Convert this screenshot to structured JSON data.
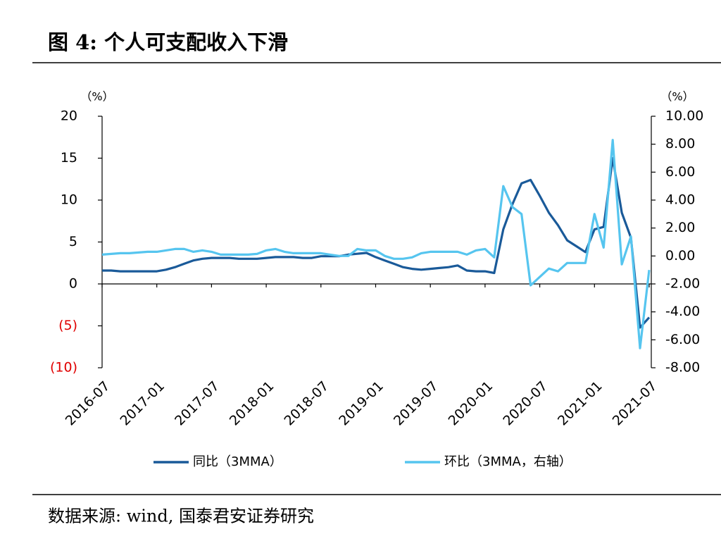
{
  "chart_data": {
    "type": "line",
    "title": "图 4: 个人可支配收入下滑",
    "source": "数据来源: wind, 国泰君安证券研究",
    "y_label": "（%）",
    "y2_label": "（%）",
    "categories": [
      "2016-07",
      null,
      null,
      null,
      null,
      null,
      "2017-01",
      null,
      null,
      null,
      null,
      null,
      "2017-07",
      null,
      null,
      null,
      null,
      null,
      "2018-01",
      null,
      null,
      null,
      null,
      null,
      "2018-07",
      null,
      null,
      null,
      null,
      null,
      "2019-01",
      null,
      null,
      null,
      null,
      null,
      "2019-07",
      null,
      null,
      null,
      null,
      null,
      "2020-01",
      null,
      null,
      null,
      null,
      null,
      "2020-07",
      null,
      null,
      null,
      null,
      null,
      "2021-01",
      null,
      null,
      null,
      null,
      null,
      "2021-07"
    ],
    "series": [
      {
        "name": "同比（3MMA）",
        "color": "#1a5a99",
        "axis": "y",
        "values": [
          1.6,
          1.6,
          1.5,
          1.5,
          1.5,
          1.5,
          1.5,
          1.7,
          2.0,
          2.4,
          2.8,
          3.0,
          3.1,
          3.1,
          3.1,
          3.0,
          3.0,
          3.0,
          3.1,
          3.2,
          3.2,
          3.2,
          3.1,
          3.1,
          3.3,
          3.3,
          3.3,
          3.5,
          3.6,
          3.7,
          3.2,
          2.8,
          2.4,
          2.0,
          1.8,
          1.7,
          1.8,
          1.9,
          2.0,
          2.2,
          1.6,
          1.5,
          1.5,
          1.3,
          6.5,
          9.5,
          12.0,
          12.4,
          10.5,
          8.5,
          7.0,
          5.2,
          4.5,
          3.8,
          6.5,
          6.8,
          15.0,
          8.5,
          5.5,
          -5.2,
          -4.0
        ]
      },
      {
        "name": "环比（3MMA，右轴）",
        "color": "#56c5ef",
        "axis": "y2",
        "values": [
          0.1,
          0.15,
          0.2,
          0.2,
          0.25,
          0.3,
          0.3,
          0.4,
          0.5,
          0.5,
          0.3,
          0.4,
          0.3,
          0.1,
          0.1,
          0.1,
          0.1,
          0.15,
          0.4,
          0.5,
          0.3,
          0.2,
          0.2,
          0.2,
          0.2,
          0.1,
          0.0,
          0.0,
          0.5,
          0.4,
          0.4,
          0.0,
          -0.2,
          -0.2,
          -0.1,
          0.2,
          0.3,
          0.3,
          0.3,
          0.3,
          0.1,
          0.4,
          0.5,
          -0.1,
          5.0,
          3.5,
          3.0,
          -2.1,
          -1.5,
          -0.9,
          -1.1,
          -0.5,
          -0.5,
          -0.5,
          3.0,
          0.6,
          8.3,
          -0.6,
          1.4,
          -6.6,
          -1.0
        ]
      }
    ],
    "ylim": [
      -10,
      20
    ],
    "yticks": [
      {
        "value": -10,
        "label": "(10)"
      },
      {
        "value": -5,
        "label": "(5)"
      },
      0,
      5,
      10,
      15,
      20
    ],
    "negative_tick_color": "#e00000",
    "y2lim": [
      -8,
      10
    ],
    "y2ticks": [
      {
        "value": -8,
        "label": "-8.00"
      },
      {
        "value": -6,
        "label": "-6.00"
      },
      {
        "value": -4,
        "label": "-4.00"
      },
      {
        "value": -2,
        "label": "-2.00"
      },
      {
        "value": 0,
        "label": "0.00"
      },
      {
        "value": 2,
        "label": "2.00"
      },
      {
        "value": 4,
        "label": "4.00"
      },
      {
        "value": 6,
        "label": "6.00"
      },
      {
        "value": 8,
        "label": "8.00"
      },
      {
        "value": 10,
        "label": "10.00"
      }
    ],
    "legend": "bottom",
    "grid": false
  }
}
